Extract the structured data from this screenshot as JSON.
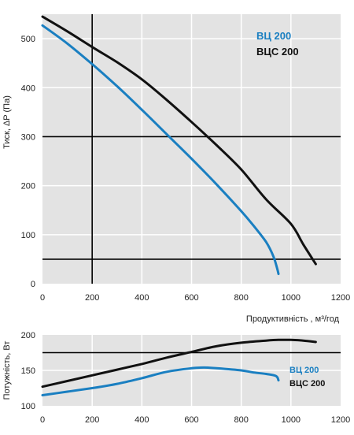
{
  "chart_data": [
    {
      "type": "line",
      "ylabel": "Тиск, ΔP (Па)",
      "xlabel": "Продуктивність , м³/год",
      "xlim": [
        0,
        1200
      ],
      "ylim": [
        0,
        550
      ],
      "xticks": [
        0,
        200,
        400,
        600,
        800,
        1000,
        1200
      ],
      "yticks": [
        0,
        100,
        200,
        300,
        400,
        500
      ],
      "grid": "heavy lines at x=200 and y=50, y=300",
      "legend_position": "top-right",
      "colors": {
        "ВЦ 200": "#1a7fc1",
        "ВЦС 200": "#111111"
      },
      "series": [
        {
          "name": "ВЦ 200",
          "x": [
            0,
            100,
            200,
            300,
            400,
            500,
            600,
            700,
            800,
            850,
            900,
            930,
            945,
            950
          ],
          "y": [
            527,
            490,
            448,
            403,
            355,
            305,
            255,
            203,
            148,
            118,
            85,
            55,
            30,
            20
          ]
        },
        {
          "name": "ВЦС 200",
          "x": [
            0,
            100,
            200,
            300,
            400,
            500,
            600,
            700,
            800,
            900,
            1000,
            1050,
            1100
          ],
          "y": [
            545,
            515,
            483,
            452,
            417,
            375,
            330,
            283,
            233,
            172,
            122,
            80,
            40
          ]
        }
      ]
    },
    {
      "type": "line",
      "ylabel": "Потужність, Вт",
      "xlabel": "",
      "xlim": [
        0,
        1200
      ],
      "ylim": [
        100,
        200
      ],
      "xticks": [
        0,
        200,
        400,
        600,
        800,
        1000,
        1200
      ],
      "yticks": [
        100,
        150,
        200
      ],
      "grid": "heavy line at y=175",
      "legend_position": "right",
      "colors": {
        "ВЦ 200": "#1a7fc1",
        "ВЦС 200": "#111111"
      },
      "series": [
        {
          "name": "ВЦ 200",
          "x": [
            0,
            100,
            200,
            300,
            400,
            500,
            600,
            650,
            700,
            800,
            850,
            900,
            940,
            950
          ],
          "y": [
            115,
            120,
            125,
            131,
            139,
            148,
            153,
            154,
            153,
            150,
            147,
            145,
            142,
            136
          ]
        },
        {
          "name": "ВЦС 200",
          "x": [
            0,
            100,
            200,
            300,
            400,
            500,
            600,
            700,
            800,
            900,
            950,
            1000,
            1050,
            1100
          ],
          "y": [
            127,
            135,
            143,
            151,
            159,
            168,
            176,
            184,
            189,
            192,
            193,
            193,
            192,
            190
          ]
        }
      ]
    }
  ]
}
